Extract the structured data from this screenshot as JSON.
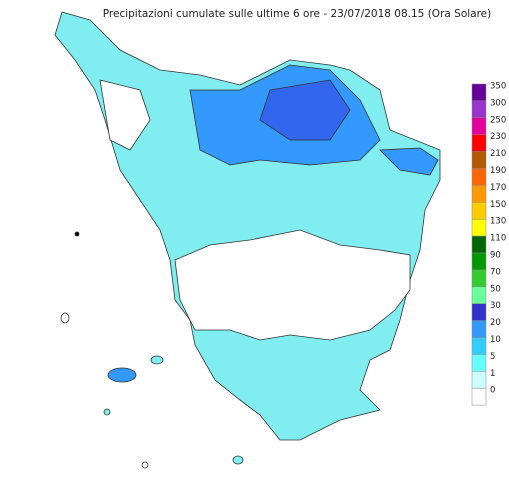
{
  "title": "Precipitazioni cumulate sulle ultime 6 ore - 23/07/2018 08.15 (Ora Solare)",
  "legend": [
    {
      "label": 350,
      "color": "#660099"
    },
    {
      "label": 300,
      "color": "#9933cc"
    },
    {
      "label": 250,
      "color": "#e6009a"
    },
    {
      "label": 230,
      "color": "#ff0000"
    },
    {
      "label": 210,
      "color": "#b35900"
    },
    {
      "label": 190,
      "color": "#ff6600"
    },
    {
      "label": 170,
      "color": "#ff9900"
    },
    {
      "label": 150,
      "color": "#ffcc00"
    },
    {
      "label": 130,
      "color": "#ffff00"
    },
    {
      "label": 110,
      "color": "#006600"
    },
    {
      "label": 90,
      "color": "#009900"
    },
    {
      "label": 70,
      "color": "#33cc33"
    },
    {
      "label": 50,
      "color": "#66ff99"
    },
    {
      "label": 30,
      "color": "#3333cc"
    },
    {
      "label": 20,
      "color": "#3399ff"
    },
    {
      "label": 10,
      "color": "#33ccff"
    },
    {
      "label": 5,
      "color": "#66ffff"
    },
    {
      "label": 1,
      "color": "#ccffff"
    },
    {
      "label": 0,
      "color": "#ffffff"
    }
  ]
}
